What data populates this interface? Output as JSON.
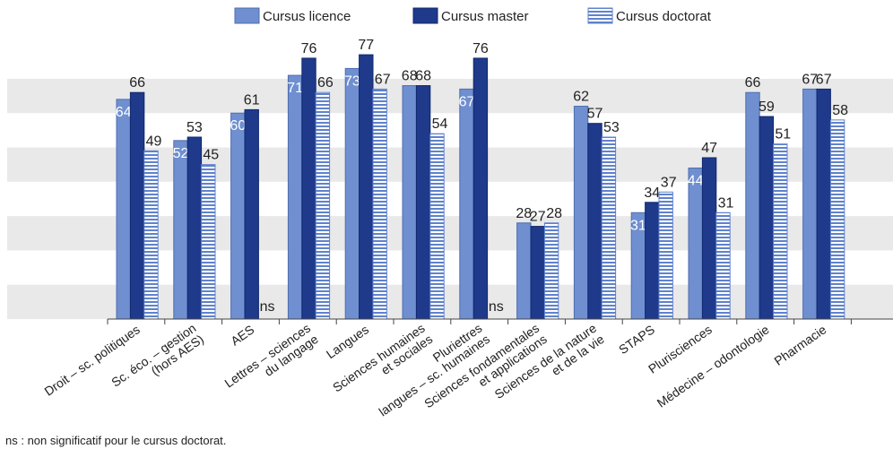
{
  "chart_data": {
    "type": "bar",
    "title": "",
    "xlabel": "",
    "ylabel": "",
    "ylim": [
      0,
      100
    ],
    "legend_position": "top-center",
    "categories": [
      "Droit – sc. politiques",
      "Sc. éco. – gestion (hors AES)",
      "AES",
      "Lettres – sciences du langage",
      "Langues",
      "Sciences humaines et sociales",
      "Plurilettres langues – sc. humaines",
      "Sciences fondamentales et applications",
      "Sciences de la nature et de la vie",
      "STAPS",
      "Plurisciences",
      "Médecine – odontologie",
      "Pharmacie"
    ],
    "category_lines": [
      [
        "Droit – sc. politiques"
      ],
      [
        "Sc. éco. – gestion",
        "(hors AES)"
      ],
      [
        "AES"
      ],
      [
        "Lettres – sciences",
        "du langage"
      ],
      [
        "Langues"
      ],
      [
        "Sciences humaines",
        "et sociales"
      ],
      [
        "Pluriettres",
        "langues – sc. humaines"
      ],
      [
        "Sciences fondamentales",
        "et applications"
      ],
      [
        "Sciences de la nature",
        "et de la vie"
      ],
      [
        "STAPS"
      ],
      [
        "Plurisciences"
      ],
      [
        "Médecine – odontologie"
      ],
      [
        "Pharmacie"
      ]
    ],
    "series": [
      {
        "name": "Cursus licence",
        "values": [
          64,
          52,
          60,
          71,
          73,
          68,
          67,
          28,
          62,
          31,
          44,
          66,
          67
        ]
      },
      {
        "name": "Cursus master",
        "values": [
          66,
          53,
          61,
          76,
          77,
          68,
          76,
          27,
          57,
          34,
          47,
          59,
          67
        ]
      },
      {
        "name": "Cursus doctorat",
        "values": [
          49,
          45,
          null,
          66,
          67,
          54,
          null,
          28,
          53,
          37,
          31,
          51,
          58
        ]
      }
    ],
    "missing_label": "ns",
    "colors": {
      "licence": "#6f8fd0",
      "master": "#1f3a8a",
      "doctorat_stripe": "#5f82cc",
      "grid_band": "#e9e9e9"
    }
  },
  "footnote": "ns : non significatif pour le cursus doctorat."
}
